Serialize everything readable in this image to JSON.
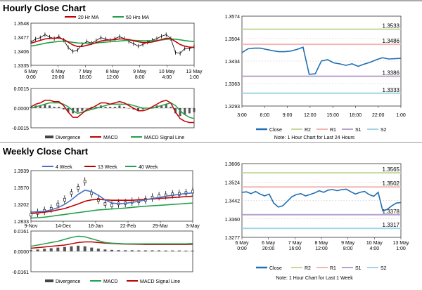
{
  "sections": {
    "hourly_title": "Hourly Close Chart",
    "weekly_title": "Weekly Close Chart"
  },
  "colors": {
    "price": "#000000",
    "ma1": "#c00000",
    "ma2": "#22a04a",
    "week4": "#4472c4",
    "close": "#1f6fb2",
    "r2": "#c4d89a",
    "r1": "#f2b6b0",
    "s1": "#b7a2cf",
    "s2": "#9fd6e6",
    "divergence": "#555555",
    "grid": "#c8c8c8"
  },
  "chart_data": [
    {
      "id": "hourly-price",
      "type": "line",
      "legend": [
        "20 Hr MA",
        "50 Hrs MA"
      ],
      "yticks": [
        "1.3548",
        "1.3477",
        "1.3406",
        "1.3335"
      ],
      "ylim": [
        1.3335,
        1.3548
      ],
      "xticks": [
        "6 May\n0:00",
        "6 May\n20:00",
        "7 May\n16:00",
        "8 May\n12:00",
        "9 May\n8:00",
        "10 May\n4:00",
        "13 May\n1:00"
      ],
      "series": [
        {
          "name": "Price",
          "values": [
            1.3452,
            1.3468,
            1.3475,
            1.349,
            1.3478,
            1.347,
            1.348,
            1.3462,
            1.3425,
            1.3405,
            1.3412,
            1.344,
            1.3455,
            1.3448,
            1.346,
            1.3475,
            1.3468,
            1.3462,
            1.347,
            1.348,
            1.347,
            1.3455,
            1.3445,
            1.3432,
            1.344,
            1.3452,
            1.3462,
            1.347,
            1.3482,
            1.349,
            1.347,
            1.34,
            1.3395,
            1.342,
            1.3418,
            1.343
          ]
        },
        {
          "name": "20 Hr MA",
          "values": [
            1.3447,
            1.3454,
            1.3461,
            1.3468,
            1.3471,
            1.3472,
            1.3473,
            1.3466,
            1.3452,
            1.3438,
            1.343,
            1.343,
            1.3436,
            1.3442,
            1.345,
            1.3458,
            1.3462,
            1.3463,
            1.3465,
            1.3468,
            1.3468,
            1.3465,
            1.346,
            1.3454,
            1.345,
            1.345,
            1.3453,
            1.3458,
            1.3465,
            1.3472,
            1.347,
            1.3455,
            1.344,
            1.3432,
            1.3427,
            1.3425
          ]
        },
        {
          "name": "50 Hrs MA",
          "values": [
            1.3432,
            1.3436,
            1.3441,
            1.3446,
            1.345,
            1.3453,
            1.3456,
            1.3457,
            1.3455,
            1.3451,
            1.3448,
            1.3447,
            1.3447,
            1.3447,
            1.3448,
            1.345,
            1.3452,
            1.3454,
            1.3456,
            1.3458,
            1.346,
            1.3461,
            1.3461,
            1.346,
            1.3459,
            1.3459,
            1.346,
            1.3461,
            1.3463,
            1.3466,
            1.3468,
            1.3467,
            1.3464,
            1.346,
            1.3457,
            1.3455
          ]
        }
      ]
    },
    {
      "id": "hourly-macd",
      "type": "bar",
      "legend": [
        "Divergence",
        "MACD",
        "MACD Signal Line"
      ],
      "yticks": [
        "0.0015",
        "0.0000",
        "-0.0015"
      ],
      "ylim": [
        -0.0015,
        0.0015
      ],
      "series": [
        {
          "name": "Divergence",
          "values": [
            0.0001,
            0.0002,
            0.0002,
            0.0003,
            0.0002,
            0.0001,
            0.0001,
            -0.0001,
            -0.0003,
            -0.0004,
            -0.0003,
            -0.0002,
            0.0,
            0.0001,
            0.0001,
            0.0002,
            0.0001,
            0.0001,
            0.0001,
            0.0002,
            0.0001,
            0.0,
            -0.0001,
            -0.0002,
            -0.0001,
            0.0,
            0.0001,
            0.0002,
            0.0002,
            0.0003,
            0.0001,
            -0.0004,
            -0.0006,
            -0.0005,
            -0.0004,
            -0.0003
          ]
        },
        {
          "name": "MACD",
          "values": [
            0.0001,
            0.0003,
            0.0004,
            0.0006,
            0.0006,
            0.0005,
            0.0005,
            0.0002,
            -0.0003,
            -0.0007,
            -0.0007,
            -0.0004,
            -0.0001,
            0.0,
            0.0002,
            0.0004,
            0.0004,
            0.0003,
            0.0004,
            0.0005,
            0.0004,
            0.0002,
            0.0,
            -0.0002,
            -0.0002,
            -0.0001,
            0.0001,
            0.0003,
            0.0005,
            0.0006,
            0.0004,
            -0.0003,
            -0.0008,
            -0.001,
            -0.0011,
            -0.0011
          ]
        },
        {
          "name": "MACD Signal Line",
          "values": [
            0.0,
            0.0001,
            0.0002,
            0.0003,
            0.0004,
            0.0004,
            0.0004,
            0.0003,
            0.0001,
            -0.0002,
            -0.0004,
            -0.0003,
            -0.0002,
            -0.0001,
            0.0,
            0.0001,
            0.0002,
            0.0003,
            0.0003,
            0.0003,
            0.0003,
            0.0003,
            0.0002,
            0.0001,
            0.0,
            0.0,
            0.0,
            0.0001,
            0.0002,
            0.0003,
            0.0004,
            0.0002,
            -0.0002,
            -0.0005,
            -0.0007,
            -0.0008
          ]
        }
      ]
    },
    {
      "id": "hourly-close-levels",
      "type": "line",
      "yticks": [
        "1.3574",
        "1.3504",
        "1.3434",
        "1.3363",
        "1.3293"
      ],
      "ylim": [
        1.3293,
        1.3574
      ],
      "xticks": [
        "3:00",
        "6:00",
        "9:00",
        "12:00",
        "15:00",
        "18:00",
        "22:00",
        "1:00"
      ],
      "levels": [
        {
          "name": "R2",
          "value": 1.3533,
          "label": "1.3533"
        },
        {
          "name": "R1",
          "value": 1.3486,
          "label": "1.3486"
        },
        {
          "name": "S1",
          "value": 1.3386,
          "label": "1.3386"
        },
        {
          "name": "S2",
          "value": 1.3333,
          "label": "1.3333"
        }
      ],
      "series": [
        {
          "name": "Close",
          "values": [
            1.346,
            1.3472,
            1.3474,
            1.3474,
            1.347,
            1.3466,
            1.3463,
            1.3463,
            1.3465,
            1.347,
            1.3477,
            1.3392,
            1.3394,
            1.3434,
            1.3438,
            1.3428,
            1.3425,
            1.342,
            1.3425,
            1.3417,
            1.3424,
            1.343,
            1.3438,
            1.3444,
            1.344,
            1.3441,
            1.3442
          ]
        }
      ],
      "legend": [
        "Close",
        "R2",
        "R1",
        "S1",
        "S2"
      ],
      "note": "Note: 1 Hour Chart for Last 24 Hours"
    },
    {
      "id": "weekly-price",
      "type": "line",
      "legend": [
        "4 Week",
        "13 Week",
        "40 Week"
      ],
      "yticks": [
        "1.3939",
        "1.3570",
        "1.3202",
        "1.2833"
      ],
      "ylim": [
        1.2833,
        1.3939
      ],
      "xticks": [
        "9-Nov",
        "14-Dec",
        "18-Jan",
        "22-Feb",
        "29-Mar",
        "3-May"
      ],
      "series": [
        {
          "name": "Price",
          "values": [
            1.2975,
            1.3015,
            1.306,
            1.3105,
            1.32,
            1.3305,
            1.345,
            1.356,
            1.37,
            1.344,
            1.33,
            1.321,
            1.318,
            1.322,
            1.323,
            1.326,
            1.327,
            1.33,
            1.335,
            1.338,
            1.34,
            1.342,
            1.343,
            1.345,
            1.348
          ]
        },
        {
          "name": "4 Week",
          "values": [
            1.303,
            1.304,
            1.305,
            1.308,
            1.313,
            1.32,
            1.33,
            1.342,
            1.351,
            1.348,
            1.34,
            1.33,
            1.323,
            1.3215,
            1.3225,
            1.3245,
            1.327,
            1.33,
            1.333,
            1.335,
            1.338,
            1.34,
            1.342,
            1.344,
            1.345
          ]
        },
        {
          "name": "13 Week",
          "values": [
            1.3,
            1.3015,
            1.303,
            1.305,
            1.308,
            1.311,
            1.316,
            1.321,
            1.327,
            1.33,
            1.331,
            1.33,
            1.329,
            1.329,
            1.329,
            1.329,
            1.33,
            1.331,
            1.332,
            1.333,
            1.334,
            1.335,
            1.336,
            1.337,
            1.338
          ]
        },
        {
          "name": "40 Week",
          "values": [
            1.29,
            1.291,
            1.292,
            1.294,
            1.296,
            1.298,
            1.3,
            1.302,
            1.304,
            1.306,
            1.308,
            1.309,
            1.31,
            1.311,
            1.312,
            1.3135,
            1.315,
            1.316,
            1.317,
            1.318,
            1.319,
            1.32,
            1.321,
            1.322,
            1.323
          ]
        }
      ]
    },
    {
      "id": "weekly-macd",
      "type": "bar",
      "legend": [
        "Divergence",
        "MACD",
        "MACD Signal Line"
      ],
      "yticks": [
        "0.0161",
        "0.0000",
        "-0.0161"
      ],
      "ylim": [
        -0.0161,
        0.0161
      ],
      "series": [
        {
          "name": "Divergence",
          "values": [
            0.001,
            0.0015,
            0.002,
            0.0025,
            0.003,
            0.0035,
            0.004,
            0.0045,
            0.004,
            0.003,
            0.0022,
            0.0015,
            0.0012,
            0.001,
            0.0009,
            0.0009,
            0.0008,
            0.0008,
            0.0008,
            0.0008,
            0.0007,
            0.0007,
            0.0007,
            0.0006,
            0.0006
          ]
        },
        {
          "name": "MACD",
          "values": [
            0.004,
            0.005,
            0.006,
            0.007,
            0.008,
            0.0095,
            0.011,
            0.012,
            0.0115,
            0.01,
            0.0085,
            0.007,
            0.0065,
            0.0062,
            0.006,
            0.006,
            0.006,
            0.006,
            0.006,
            0.006,
            0.006,
            0.006,
            0.006,
            0.006,
            0.0062
          ]
        },
        {
          "name": "MACD Signal Line",
          "values": [
            0.0025,
            0.003,
            0.0035,
            0.004,
            0.0045,
            0.005,
            0.006,
            0.007,
            0.0075,
            0.0075,
            0.007,
            0.0065,
            0.0063,
            0.006,
            0.0058,
            0.0057,
            0.0056,
            0.0055,
            0.0055,
            0.0055,
            0.0055,
            0.0055,
            0.0055,
            0.0055,
            0.0056
          ]
        }
      ]
    },
    {
      "id": "weekly-close-levels",
      "type": "line",
      "yticks": [
        "1.3606",
        "1.3524",
        "1.3442",
        "1.3360",
        "1.3277"
      ],
      "ylim": [
        1.3277,
        1.3606
      ],
      "xticks": [
        "6 May\n0:00",
        "6 May\n20:00",
        "7 May\n16:00",
        "8 May\n12:00",
        "9 May\n8:00",
        "10 May\n4:00",
        "13 May\n1:00"
      ],
      "levels": [
        {
          "name": "R2",
          "value": 1.3565,
          "label": "1.3565"
        },
        {
          "name": "R1",
          "value": 1.3502,
          "label": "1.3502"
        },
        {
          "name": "S1",
          "value": 1.3378,
          "label": "1.3378"
        },
        {
          "name": "S2",
          "value": 1.3317,
          "label": "1.3317"
        }
      ],
      "series": [
        {
          "name": "Close",
          "values": [
            1.3478,
            1.348,
            1.3472,
            1.3482,
            1.347,
            1.3462,
            1.347,
            1.343,
            1.3412,
            1.3418,
            1.3438,
            1.3458,
            1.3468,
            1.3472,
            1.3462,
            1.3468,
            1.3475,
            1.3485,
            1.3478,
            1.3488,
            1.349,
            1.3485,
            1.349,
            1.3492,
            1.348,
            1.347,
            1.3478,
            1.3482,
            1.3468,
            1.346,
            1.3478,
            1.3395,
            1.3402,
            1.3418,
            1.343,
            1.3432
          ]
        }
      ],
      "legend": [
        "Close",
        "R2",
        "R1",
        "S1",
        "S2"
      ],
      "note": "Note: 1 Hour Chart for Last 1 Week"
    }
  ]
}
